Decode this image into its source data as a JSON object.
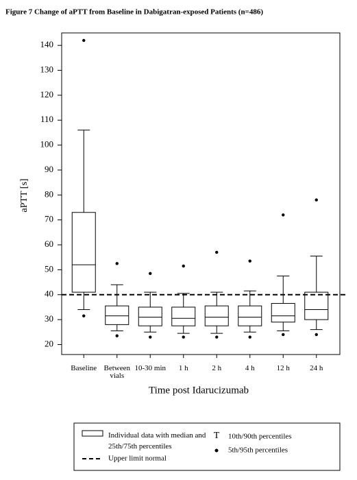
{
  "chart_data": {
    "type": "box",
    "title": "Figure 7    Change of aPTT from Baseline in Dabigatran-exposed Patients (n=486)",
    "xlabel": "Time post Idarucizumab",
    "ylabel": "aPTT [s]",
    "categories": [
      "Baseline",
      "Between vials",
      "10-30 min",
      "1 h",
      "2 h",
      "4 h",
      "12 h",
      "24 h"
    ],
    "p5": [
      31.5,
      23.5,
      23,
      23,
      23,
      23,
      24,
      24
    ],
    "p10": [
      34,
      25.5,
      25,
      24.5,
      24.5,
      25,
      25.5,
      26
    ],
    "q1": [
      41,
      28,
      27.5,
      27.5,
      27.5,
      27.5,
      29,
      30
    ],
    "median": [
      52,
      31.5,
      31,
      30.5,
      31,
      31,
      31.5,
      34
    ],
    "q3": [
      73,
      35.5,
      35,
      35,
      35.5,
      35.5,
      36.5,
      41
    ],
    "p90": [
      106,
      44,
      41,
      40.5,
      41,
      41.5,
      47.5,
      55.5
    ],
    "p95": [
      142,
      52.5,
      48.5,
      51.5,
      57,
      53.5,
      72,
      78
    ],
    "reference_line": 40,
    "ylim": [
      16,
      145
    ],
    "yticks": [
      20,
      30,
      40,
      50,
      60,
      70,
      80,
      90,
      100,
      110,
      120,
      130,
      140
    ],
    "legend": {
      "box": "Individual data with median and 25th/75th percentiles",
      "whisker_symbol": "T",
      "whisker": "10th/90th percentiles",
      "dots": "5th/95th percentiles",
      "reference": "Upper limit normal"
    }
  }
}
